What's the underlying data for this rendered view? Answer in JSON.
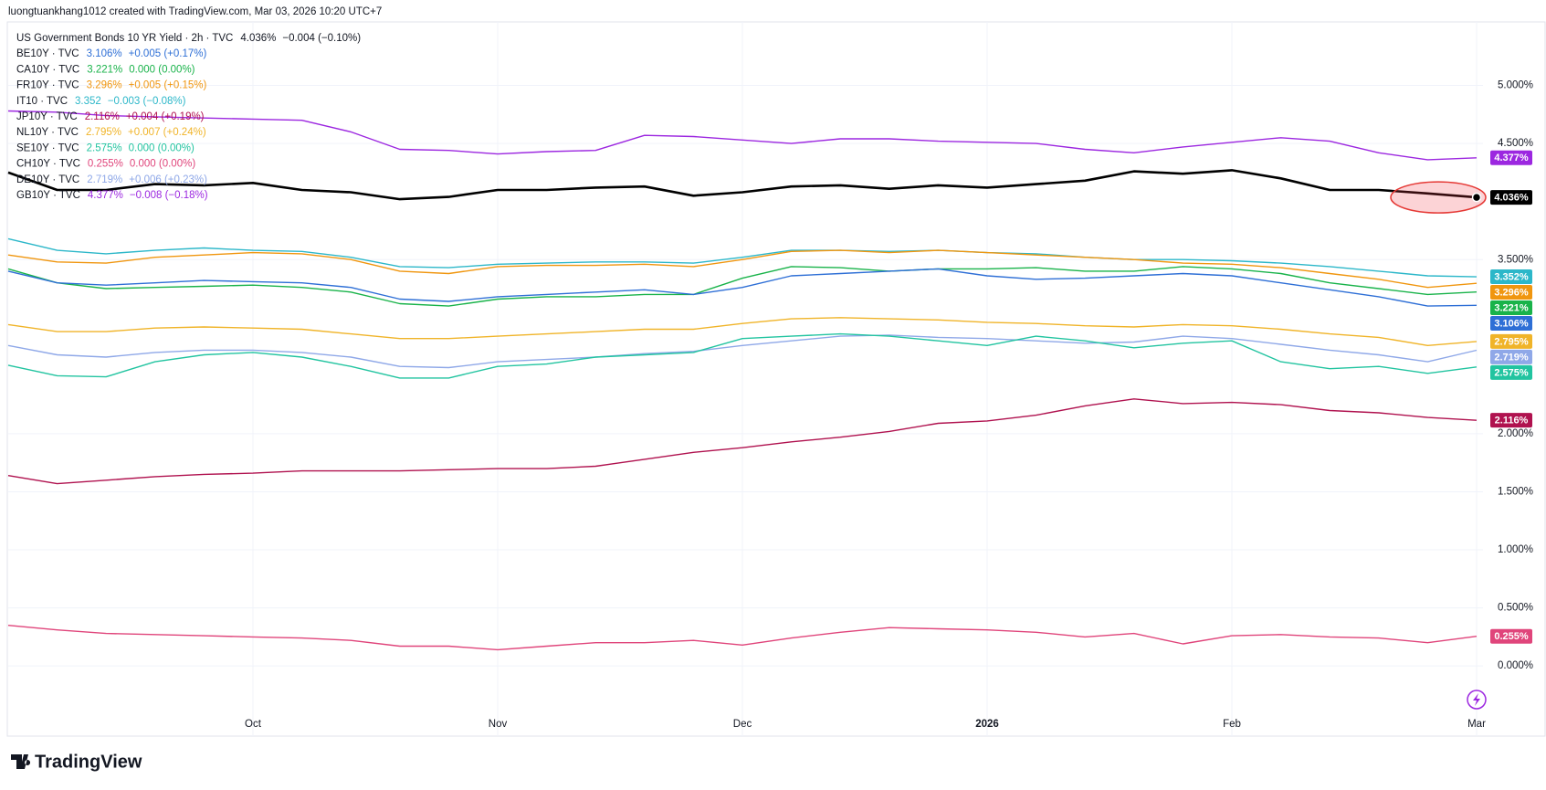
{
  "header": "luongtuankhang1012 created with TradingView.com, Mar 03, 2026 10:20 UTC+7",
  "footer": "TradingView",
  "chart_data": {
    "type": "line",
    "categories": [
      null,
      null,
      null,
      null,
      null,
      "Oct",
      null,
      null,
      null,
      null,
      "Nov",
      null,
      null,
      null,
      null,
      "Dec",
      null,
      null,
      null,
      null,
      "2026",
      null,
      null,
      null,
      null,
      "Feb",
      null,
      null,
      null,
      null,
      "Mar"
    ],
    "ylim": [
      -0.4,
      5.5
    ],
    "yticks": [
      {
        "value": 0,
        "label": "0.000%"
      },
      {
        "value": 0.5,
        "label": "0.500%"
      },
      {
        "value": 1,
        "label": "1.000%"
      },
      {
        "value": 1.5,
        "label": "1.500%"
      },
      {
        "value": 2,
        "label": "2.000%"
      },
      {
        "value": 3.5,
        "label": "3.500%"
      },
      {
        "value": 4.5,
        "label": "4.500%"
      },
      {
        "value": 5,
        "label": "5.000%"
      }
    ],
    "grid": true,
    "series": [
      {
        "name": "US Government Bonds 10 YR Yield · 2h · TVC",
        "legend_value": "4.036%",
        "change": "−0.004 (−0.10%)",
        "last_label": "4.036%",
        "color": "#000000",
        "values": [
          4.25,
          4.1,
          4.1,
          4.15,
          4.14,
          4.16,
          4.1,
          4.08,
          4.02,
          4.04,
          4.1,
          4.1,
          4.12,
          4.13,
          4.05,
          4.08,
          4.13,
          4.14,
          4.11,
          4.14,
          4.12,
          4.15,
          4.18,
          4.26,
          4.24,
          4.27,
          4.2,
          4.1,
          4.1,
          4.07,
          4.036
        ]
      },
      {
        "name": "BE10Y · TVC",
        "legend_value": "3.106%",
        "change": "+0.005 (+0.17%)",
        "last_label": "3.106%",
        "color": "#2e6fd6",
        "values": [
          3.4,
          3.3,
          3.28,
          3.3,
          3.32,
          3.31,
          3.3,
          3.26,
          3.16,
          3.14,
          3.18,
          3.2,
          3.22,
          3.24,
          3.2,
          3.26,
          3.36,
          3.38,
          3.4,
          3.42,
          3.36,
          3.33,
          3.34,
          3.36,
          3.38,
          3.36,
          3.3,
          3.24,
          3.18,
          3.1,
          3.106
        ]
      },
      {
        "name": "CA10Y · TVC",
        "legend_value": "3.221%",
        "change": "0.000 (0.00%)",
        "last_label": "3.221%",
        "color": "#19b34a",
        "values": [
          3.42,
          3.3,
          3.25,
          3.26,
          3.27,
          3.28,
          3.26,
          3.22,
          3.12,
          3.1,
          3.16,
          3.18,
          3.18,
          3.2,
          3.2,
          3.34,
          3.44,
          3.43,
          3.4,
          3.42,
          3.42,
          3.43,
          3.4,
          3.4,
          3.44,
          3.42,
          3.38,
          3.3,
          3.25,
          3.2,
          3.221
        ]
      },
      {
        "name": "FR10Y · TVC",
        "legend_value": "3.296%",
        "change": "+0.005 (+0.15%)",
        "last_label": "3.296%",
        "color": "#f0960f",
        "values": [
          3.54,
          3.48,
          3.47,
          3.52,
          3.54,
          3.56,
          3.55,
          3.5,
          3.4,
          3.38,
          3.44,
          3.45,
          3.45,
          3.46,
          3.44,
          3.5,
          3.57,
          3.58,
          3.56,
          3.58,
          3.56,
          3.54,
          3.52,
          3.5,
          3.47,
          3.46,
          3.43,
          3.38,
          3.33,
          3.26,
          3.296
        ]
      },
      {
        "name": "IT10 · TVC",
        "legend_value": "3.352",
        "change": "−0.003 (−0.08%)",
        "last_label": "3.352%",
        "color": "#2cb7c9",
        "values": [
          3.68,
          3.58,
          3.55,
          3.58,
          3.6,
          3.58,
          3.57,
          3.52,
          3.44,
          3.43,
          3.46,
          3.47,
          3.48,
          3.48,
          3.47,
          3.52,
          3.58,
          3.58,
          3.57,
          3.58,
          3.56,
          3.55,
          3.52,
          3.5,
          3.5,
          3.49,
          3.47,
          3.44,
          3.4,
          3.36,
          3.352
        ]
      },
      {
        "name": "JP10Y · TVC",
        "legend_value": "2.116%",
        "change": "+0.004 (+0.19%)",
        "last_label": "2.116%",
        "color": "#b0124f",
        "values": [
          1.64,
          1.57,
          1.6,
          1.63,
          1.65,
          1.66,
          1.68,
          1.68,
          1.68,
          1.69,
          1.7,
          1.7,
          1.72,
          1.78,
          1.84,
          1.88,
          1.93,
          1.97,
          2.02,
          2.09,
          2.11,
          2.16,
          2.24,
          2.3,
          2.26,
          2.27,
          2.25,
          2.2,
          2.18,
          2.14,
          2.116
        ]
      },
      {
        "name": "NL10Y · TVC",
        "legend_value": "2.795%",
        "change": "+0.007 (+0.24%)",
        "last_label": "2.795%",
        "color": "#f0b429",
        "values": [
          2.94,
          2.88,
          2.88,
          2.91,
          2.92,
          2.91,
          2.9,
          2.86,
          2.82,
          2.82,
          2.84,
          2.86,
          2.88,
          2.9,
          2.9,
          2.95,
          2.99,
          3.0,
          2.99,
          2.98,
          2.96,
          2.95,
          2.93,
          2.92,
          2.94,
          2.93,
          2.9,
          2.86,
          2.83,
          2.76,
          2.795
        ]
      },
      {
        "name": "SE10Y · TVC",
        "legend_value": "2.575%",
        "change": "0.000 (0.00%)",
        "last_label": "2.575%",
        "color": "#22c4a0",
        "values": [
          2.59,
          2.5,
          2.49,
          2.62,
          2.68,
          2.7,
          2.66,
          2.58,
          2.48,
          2.48,
          2.58,
          2.6,
          2.66,
          2.68,
          2.7,
          2.82,
          2.84,
          2.86,
          2.84,
          2.8,
          2.76,
          2.84,
          2.8,
          2.74,
          2.78,
          2.8,
          2.62,
          2.56,
          2.58,
          2.52,
          2.575
        ]
      },
      {
        "name": "CH10Y · TVC",
        "legend_value": "0.255%",
        "change": "0.000 (0.00%)",
        "last_label": "0.255%",
        "color": "#e0457b",
        "values": [
          0.35,
          0.31,
          0.28,
          0.27,
          0.26,
          0.25,
          0.24,
          0.22,
          0.17,
          0.17,
          0.14,
          0.17,
          0.2,
          0.2,
          0.22,
          0.18,
          0.24,
          0.29,
          0.33,
          0.32,
          0.31,
          0.29,
          0.25,
          0.28,
          0.19,
          0.26,
          0.27,
          0.25,
          0.24,
          0.2,
          0.255
        ]
      },
      {
        "name": "DE10Y · TVC",
        "legend_value": "2.719%",
        "change": "+0.006 (+0.23%)",
        "last_label": "2.719%",
        "color": "#8fa8e8",
        "values": [
          2.76,
          2.68,
          2.66,
          2.7,
          2.72,
          2.72,
          2.7,
          2.66,
          2.58,
          2.57,
          2.62,
          2.64,
          2.66,
          2.69,
          2.71,
          2.76,
          2.8,
          2.84,
          2.85,
          2.83,
          2.82,
          2.8,
          2.78,
          2.79,
          2.84,
          2.82,
          2.77,
          2.72,
          2.68,
          2.62,
          2.719
        ]
      },
      {
        "name": "GB10Y · TVC",
        "legend_value": "4.377%",
        "change": "−0.008 (−0.18%)",
        "last_label": "4.377%",
        "color": "#9c27e0",
        "values": [
          4.78,
          4.77,
          4.74,
          4.73,
          4.72,
          4.71,
          4.7,
          4.6,
          4.45,
          4.44,
          4.41,
          4.43,
          4.44,
          4.57,
          4.56,
          4.53,
          4.5,
          4.54,
          4.54,
          4.52,
          4.51,
          4.5,
          4.45,
          4.42,
          4.47,
          4.51,
          4.55,
          4.52,
          4.42,
          4.36,
          4.377
        ]
      }
    ]
  }
}
